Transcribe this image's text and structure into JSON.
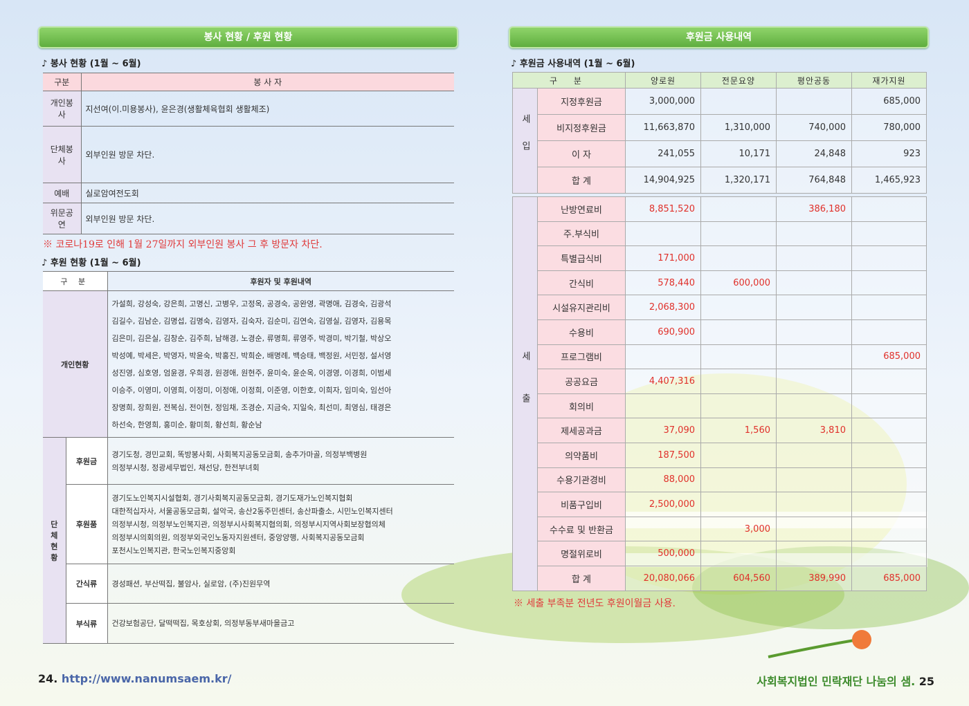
{
  "left": {
    "header_title": "봉사 현황 / 후원 현황",
    "volunteer": {
      "title": "♪ 봉사 현황 (1월 ~ 6월)",
      "columns": [
        "구분",
        "봉 사 자"
      ],
      "rows": [
        {
          "label": "개인봉사",
          "text": "지선여(이.미용봉사), 윤은경(생활체육협회 생활체조)"
        },
        {
          "label": "단체봉사",
          "text": "외부인원 방문 차단."
        },
        {
          "label": "예배",
          "text": "실로암여전도회"
        },
        {
          "label": "위문공연",
          "text": "외부인원 방문 차단."
        }
      ],
      "note": "※ 코로나19로 인해 1월 27일까지 외부인원 봉사 그 후 방문자 차단."
    },
    "donation": {
      "title": "♪ 후원 현황 (1월 ~ 6월)",
      "columns": [
        "구 분",
        "후원자 및 후원내역"
      ],
      "individual": {
        "label": "개인현황",
        "lines": [
          "가설희, 강성숙, 강은희, 고명신, 고병우, 고정옥, 공경숙, 공완영, 곽명애, 김경숙, 김광석",
          "김길수, 김남순, 김명섭, 김명숙, 김영자, 김숙자, 김순미, 김연숙, 김영실, 김영자, 김용목",
          "김은미, 김은실, 김창순, 김주희, 남해경, 노경순, 류명희, 류영주, 박경미, 박기철, 박상오",
          "박성예, 박세은, 박영자, 박윤숙, 박홍진, 박희순, 배명례, 백승태, 백정원, 서민정, 설서영",
          "성진영, 심호영, 엄윤경, 우희경, 원경애, 원현주, 윤미숙, 윤순옥, 이경영, 이경희, 이범세",
          "이승주, 이영미, 이영희, 이정미, 이정애, 이정희, 이준영, 이한호, 이희자, 임미숙, 임선아",
          "장명희, 장희원, 전복심, 전이현, 정임채, 조경순, 지금숙, 지일숙, 최선미, 최영심, 태경은",
          "하선숙, 한영희, 홍미순, 황미희, 황선희, 황순남"
        ]
      },
      "group": {
        "label": "단체현황",
        "rows": [
          {
            "label": "후원금",
            "lines": [
              "경기도청, 경민교회, 똑방봉사회, 사회복지공동모금회, 송추가마골, 의정부백병원",
              "의정부시청, 정광세무법인, 채선당, 한전부녀회"
            ]
          },
          {
            "label": "후원품",
            "lines": [
              "경기도노인복지시설협회, 경기사회복지공동모금회, 경기도재가노인복지협회",
              "대한적십자사, 서울공동모금회, 설악국, 송산2동주민센터, 송산파출소, 시민노인복지센터",
              "의정부시청, 의정부노인복지관, 의정부시사회복지협의회, 의정부시지역사회보장협의체",
              "의정부시의회의원, 의정부외국인노동자지원센터, 중앙양행, 사회복지공동모금회",
              "포천시노인복지관, 한국노인복지중앙회"
            ]
          },
          {
            "label": "간식류",
            "lines": [
              "경성패션, 부산떡집, 불암사, 실로암, (주)진원무역"
            ]
          },
          {
            "label": "부식류",
            "lines": [
              "건강보험공단, 달떡떡집, 목호상회, 의정부동부새마을금고"
            ]
          }
        ]
      }
    }
  },
  "right": {
    "header_title": "후원금 사용내역",
    "usage": {
      "title": "♪ 후원금 사용내역 (1월 ~ 6월)",
      "columns": [
        "구 분",
        "양로원",
        "전문요양",
        "평안공동",
        "재가지원"
      ],
      "income": {
        "label": "세입",
        "rows": [
          {
            "label": "지정후원금",
            "values": [
              "3,000,000",
              null,
              null,
              "685,000"
            ]
          },
          {
            "label": "비지정후원금",
            "values": [
              "11,663,870",
              "1,310,000",
              "740,000",
              "780,000"
            ]
          },
          {
            "label": "이 자",
            "values": [
              "241,055",
              "10,171",
              "24,848",
              "923"
            ]
          },
          {
            "label": "합 계",
            "values": [
              "14,904,925",
              "1,320,171",
              "764,848",
              "1,465,923"
            ]
          }
        ]
      },
      "expense": {
        "label": "세출",
        "rows": [
          {
            "label": "난방연료비",
            "values": [
              "8,851,520",
              null,
              "386,180",
              null
            ]
          },
          {
            "label": "주.부식비",
            "values": [
              null,
              null,
              null,
              null
            ]
          },
          {
            "label": "특별급식비",
            "values": [
              "171,000",
              null,
              null,
              null
            ]
          },
          {
            "label": "간식비",
            "values": [
              "578,440",
              "600,000",
              null,
              null
            ]
          },
          {
            "label": "시설유지관리비",
            "values": [
              "2,068,300",
              null,
              null,
              null
            ]
          },
          {
            "label": "수용비",
            "values": [
              "690,900",
              null,
              null,
              null
            ]
          },
          {
            "label": "프로그램비",
            "values": [
              null,
              null,
              null,
              "685,000"
            ]
          },
          {
            "label": "공공요금",
            "values": [
              "4,407,316",
              null,
              null,
              null
            ]
          },
          {
            "label": "회의비",
            "values": [
              null,
              null,
              null,
              null
            ]
          },
          {
            "label": "제세공과금",
            "values": [
              "37,090",
              "1,560",
              "3,810",
              null
            ]
          },
          {
            "label": "의약품비",
            "values": [
              "187,500",
              null,
              null,
              null
            ]
          },
          {
            "label": "수용기관경비",
            "values": [
              "88,000",
              null,
              null,
              null
            ]
          },
          {
            "label": "비품구입비",
            "values": [
              "2,500,000",
              null,
              null,
              null
            ]
          },
          {
            "label": "수수료 및 반환금",
            "values": [
              null,
              "3,000",
              null,
              null
            ]
          },
          {
            "label": "명절위로비",
            "values": [
              "500,000",
              null,
              null,
              null
            ]
          },
          {
            "label": "합 계",
            "values": [
              "20,080,066",
              "604,560",
              "389,990",
              "685,000"
            ]
          }
        ]
      },
      "note": "※ 세출 부족분 전년도 후원이월금 사용."
    }
  },
  "footer": {
    "left_page": "24.",
    "left_url": "http://www.nanumsaem.kr/",
    "right_text": "사회복지법인 민락재단 나눔의 샘.",
    "right_page": "25"
  }
}
